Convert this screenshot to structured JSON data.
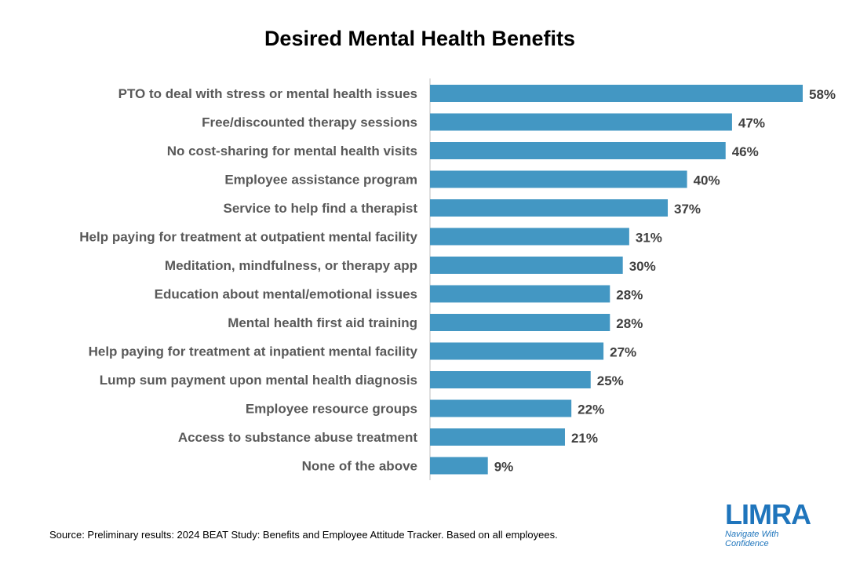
{
  "title": "Desired Mental Health Benefits",
  "source": "Source: Preliminary results: 2024 BEAT Study: Benefits and Employee Attitude Tracker. Based on all employees.",
  "logo": {
    "text": "LIMRA",
    "tagline": "Navigate With Confidence"
  },
  "colors": {
    "bar": "#4397c3",
    "axis": "#bfbfbf"
  },
  "chart_data": {
    "type": "bar",
    "orientation": "horizontal",
    "title": "Desired Mental Health Benefits",
    "xlim": [
      0,
      60
    ],
    "grid": false,
    "legend": "none",
    "value_suffix": "%",
    "categories": [
      "PTO to deal with stress or mental health issues",
      "Free/discounted therapy sessions",
      "No cost-sharing for mental health visits",
      "Employee assistance program",
      "Service to help find a therapist",
      "Help paying for treatment at outpatient mental facility",
      "Meditation, mindfulness, or therapy app",
      "Education about mental/emotional issues",
      "Mental health first aid training",
      "Help paying for treatment at inpatient mental facility",
      "Lump sum payment upon mental health diagnosis",
      "Employee resource groups",
      "Access to substance abuse treatment",
      "None of the above"
    ],
    "values": [
      58,
      47,
      46,
      40,
      37,
      31,
      30,
      28,
      28,
      27,
      25,
      22,
      21,
      9
    ]
  }
}
